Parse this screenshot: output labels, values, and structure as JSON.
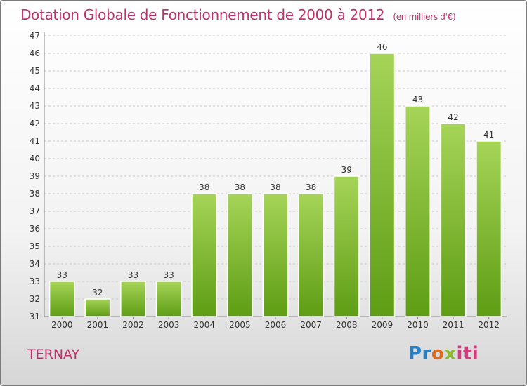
{
  "title": "Dotation Globale de Fonctionnement de 2000 à 2012",
  "subtitle": "(en milliers d'€)",
  "region": "TERNAY",
  "logo": {
    "parts": [
      "Pr",
      "o",
      "x",
      "iti"
    ]
  },
  "colors": {
    "title": "#c0306a",
    "bar_light": "#a6d458",
    "bar_dark": "#5e9d14",
    "grid": "#c8c8c8"
  },
  "chart_data": {
    "type": "bar",
    "categories": [
      "2000",
      "2001",
      "2002",
      "2003",
      "2004",
      "2005",
      "2006",
      "2007",
      "2008",
      "2009",
      "2010",
      "2011",
      "2012"
    ],
    "values": [
      33,
      32,
      33,
      33,
      38,
      38,
      38,
      38,
      39,
      46,
      43,
      42,
      41
    ],
    "ylim": [
      31,
      47
    ],
    "yticks": [
      31,
      32,
      33,
      34,
      35,
      36,
      37,
      38,
      39,
      40,
      41,
      42,
      43,
      44,
      45,
      46,
      47
    ],
    "grid": true,
    "data_labels": true
  }
}
